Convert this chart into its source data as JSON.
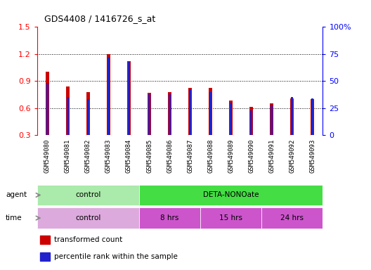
{
  "title": "GDS4408 / 1416726_s_at",
  "samples": [
    "GSM549080",
    "GSM549081",
    "GSM549082",
    "GSM549083",
    "GSM549084",
    "GSM549085",
    "GSM549086",
    "GSM549087",
    "GSM549088",
    "GSM549089",
    "GSM549090",
    "GSM549091",
    "GSM549092",
    "GSM549093"
  ],
  "transformed_count": [
    1.0,
    0.84,
    0.78,
    1.2,
    1.12,
    0.77,
    0.78,
    0.82,
    0.82,
    0.68,
    0.61,
    0.65,
    0.71,
    0.7
  ],
  "percentile_rank": [
    48,
    35,
    33,
    72,
    68,
    38,
    38,
    42,
    40,
    30,
    23,
    28,
    35,
    34
  ],
  "ylim_left": [
    0.3,
    1.5
  ],
  "ylim_right": [
    0,
    100
  ],
  "yticks_left": [
    0.3,
    0.6,
    0.9,
    1.2,
    1.5
  ],
  "yticks_right": [
    0,
    25,
    50,
    75,
    100
  ],
  "bar_color_red": "#cc0000",
  "bar_color_blue": "#2222cc",
  "tick_bg_color": "#cccccc",
  "agent_groups": [
    {
      "label": "control",
      "start": 0,
      "end": 5,
      "color": "#aaeaaa"
    },
    {
      "label": "DETA-NONOate",
      "start": 5,
      "end": 14,
      "color": "#44dd44"
    }
  ],
  "time_groups": [
    {
      "label": "control",
      "start": 0,
      "end": 5,
      "color": "#ddaadd"
    },
    {
      "label": "8 hrs",
      "start": 5,
      "end": 8,
      "color": "#cc55cc"
    },
    {
      "label": "15 hrs",
      "start": 8,
      "end": 11,
      "color": "#cc55cc"
    },
    {
      "label": "24 hrs",
      "start": 11,
      "end": 14,
      "color": "#cc55cc"
    }
  ],
  "legend_red_label": "transformed count",
  "legend_blue_label": "percentile rank within the sample"
}
